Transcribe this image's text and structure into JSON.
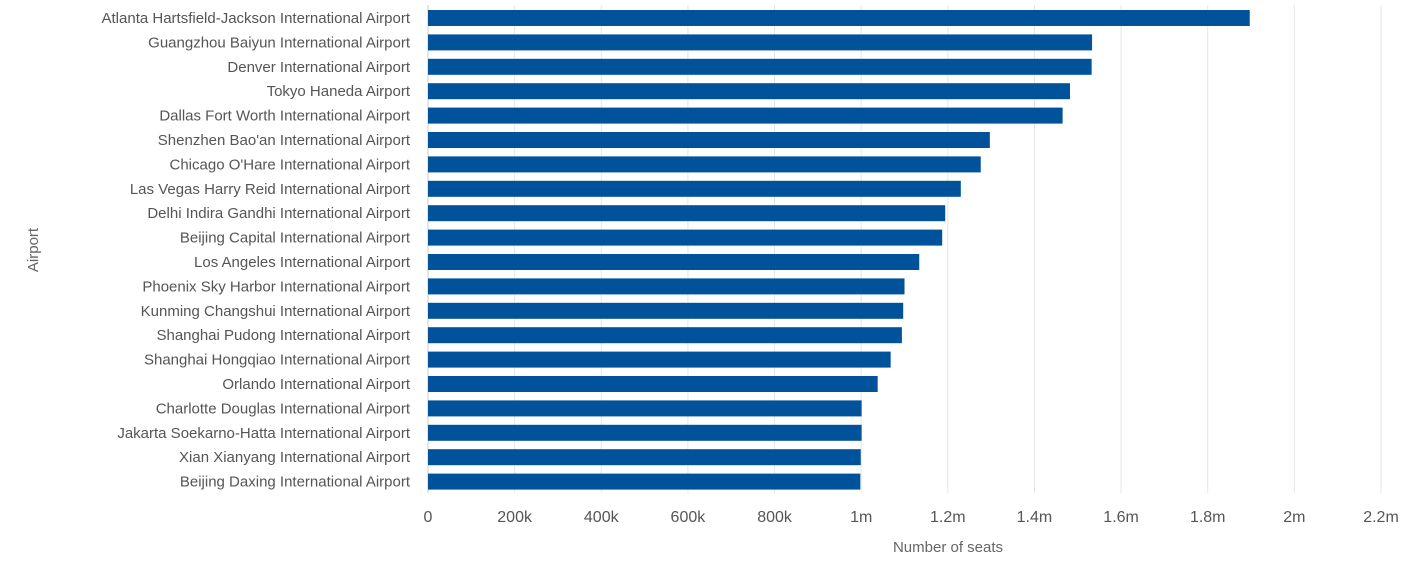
{
  "chart_data": {
    "type": "bar",
    "orientation": "horizontal",
    "xlabel": "Number of seats",
    "ylabel": "Airport",
    "xlim": [
      0,
      2200000
    ],
    "x_ticks": [
      {
        "value": 0,
        "label": "0"
      },
      {
        "value": 200000,
        "label": "200k"
      },
      {
        "value": 400000,
        "label": "400k"
      },
      {
        "value": 600000,
        "label": "600k"
      },
      {
        "value": 800000,
        "label": "800k"
      },
      {
        "value": 1000000,
        "label": "1m"
      },
      {
        "value": 1200000,
        "label": "1.2m"
      },
      {
        "value": 1400000,
        "label": "1.4m"
      },
      {
        "value": 1600000,
        "label": "1.6m"
      },
      {
        "value": 1800000,
        "label": "1.8m"
      },
      {
        "value": 2000000,
        "label": "2m"
      },
      {
        "value": 2200000,
        "label": "2.2m"
      }
    ],
    "grid": true,
    "bar_color": "#00529b",
    "categories": [
      "Atlanta Hartsfield-Jackson International Airport",
      "Guangzhou Baiyun International Airport",
      "Denver International Airport",
      "Tokyo Haneda Airport",
      "Dallas Fort Worth International Airport",
      "Shenzhen Bao'an International Airport",
      "Chicago O'Hare International Airport",
      "Las Vegas Harry Reid International Airport",
      "Delhi Indira Gandhi International Airport",
      "Beijing Capital International Airport",
      "Los Angeles International Airport",
      "Phoenix Sky Harbor International Airport",
      "Kunming Changshui International Airport",
      "Shanghai Pudong International Airport",
      "Shanghai Hongqiao International Airport",
      "Orlando International Airport",
      "Charlotte Douglas International Airport",
      "Jakarta Soekarno-Hatta International Airport",
      "Xian Xianyang International Airport",
      "Beijing Daxing International Airport"
    ],
    "values": [
      1897000,
      1533000,
      1532000,
      1482000,
      1465000,
      1297000,
      1276000,
      1230000,
      1194000,
      1187000,
      1134000,
      1100000,
      1097000,
      1094000,
      1068000,
      1038000,
      1001000,
      1001000,
      999000,
      998000
    ]
  }
}
